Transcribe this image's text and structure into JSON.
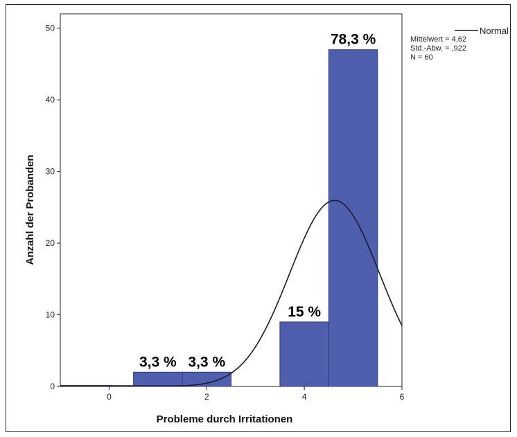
{
  "chart_data": {
    "type": "bar",
    "subtype": "histogram",
    "title": "",
    "xlabel": "Probleme durch Irritationen",
    "ylabel": "Anzahl der Probanden",
    "xlim": [
      -1,
      6
    ],
    "ylim": [
      0,
      52
    ],
    "x_ticks": [
      0,
      2,
      4,
      6
    ],
    "y_ticks": [
      0,
      10,
      20,
      30,
      40,
      50
    ],
    "grid": false,
    "bar_color": "#4f5fad",
    "bins": [
      {
        "x0": 0.5,
        "x1": 1.5,
        "value": 2,
        "label": "3,3 %"
      },
      {
        "x0": 1.5,
        "x1": 2.5,
        "value": 2,
        "label": "3,3 %"
      },
      {
        "x0": 3.5,
        "x1": 4.5,
        "value": 9,
        "label": "15 %"
      },
      {
        "x0": 4.5,
        "x1": 5.5,
        "value": 47,
        "label": "78,3 %"
      }
    ],
    "normal_curve": {
      "name": "Normal",
      "mean": 4.62,
      "sd": 0.922,
      "n": 60,
      "bin_width": 1
    },
    "legend": {
      "position": "top-right",
      "series_name": "Normal",
      "lines": [
        "Mittelwert = 4,62",
        "Std.-Abw. = ,922",
        "N = 60"
      ]
    }
  }
}
